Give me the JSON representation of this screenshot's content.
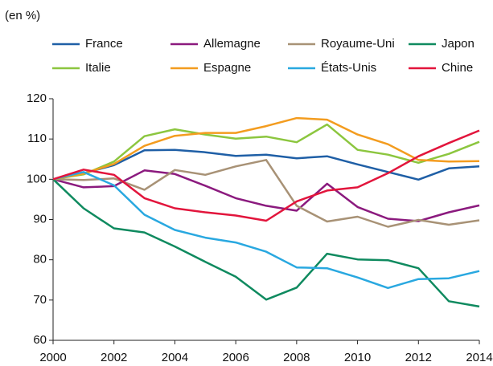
{
  "chart_data": {
    "type": "line",
    "unit_label": "(en %)",
    "x": [
      2000,
      2001,
      2002,
      2003,
      2004,
      2005,
      2006,
      2007,
      2008,
      2009,
      2010,
      2011,
      2012,
      2013,
      2014
    ],
    "xlim": [
      2000,
      2014
    ],
    "xticks": [
      2000,
      2002,
      2004,
      2006,
      2008,
      2010,
      2012,
      2014
    ],
    "ylim": [
      60,
      120
    ],
    "yticks": [
      60,
      70,
      80,
      90,
      100,
      110,
      120
    ],
    "grid": false,
    "series": [
      {
        "name": "France",
        "color": "#1f5fa6",
        "values": [
          100,
          101.5,
          103.5,
          107.2,
          107.3,
          106.7,
          105.8,
          106.1,
          105.2,
          105.7,
          103.7,
          101.8,
          99.9,
          102.7,
          103.2
        ]
      },
      {
        "name": "Allemagne",
        "color": "#8b1a7e",
        "values": [
          100,
          98,
          98.3,
          102.2,
          101.3,
          98.4,
          95.3,
          93.4,
          92.2,
          98.9,
          93.1,
          90.2,
          89.6,
          91.8,
          93.5
        ]
      },
      {
        "name": "Royaume-Uni",
        "color": "#a89276",
        "values": [
          100,
          99.8,
          100.2,
          97.4,
          102.3,
          101.1,
          103.2,
          104.8,
          93.4,
          89.5,
          90.7,
          88.2,
          89.9,
          88.7,
          89.8
        ]
      },
      {
        "name": "Japon",
        "color": "#0f8a5f",
        "values": [
          100,
          92.8,
          87.8,
          86.8,
          83.3,
          79.5,
          75.8,
          70.1,
          73.1,
          81.5,
          80.1,
          79.9,
          77.9,
          69.7,
          68.4
        ]
      },
      {
        "name": "Italie",
        "color": "#8cc63f",
        "values": [
          100,
          101.2,
          104.4,
          110.7,
          112.4,
          111.1,
          110.1,
          110.6,
          109.2,
          113.6,
          107.3,
          106.1,
          104.1,
          106.3,
          109.3
        ]
      },
      {
        "name": "Espagne",
        "color": "#f39c1f",
        "values": [
          100,
          101.4,
          103.8,
          108.3,
          110.8,
          111.5,
          111.5,
          113.2,
          115.2,
          114.8,
          111.1,
          108.7,
          104.8,
          104.4,
          104.5
        ]
      },
      {
        "name": "États-Unis",
        "color": "#29a8e0",
        "values": [
          100,
          101.8,
          98.5,
          91.2,
          87.4,
          85.5,
          84.3,
          82,
          78.1,
          77.9,
          75.6,
          73,
          75.2,
          75.4,
          77.2
        ]
      },
      {
        "name": "Chine",
        "color": "#e2153c",
        "values": [
          100,
          102.4,
          101.1,
          95.3,
          92.8,
          91.8,
          91,
          89.7,
          94.5,
          97.2,
          98,
          101.5,
          105.7,
          109,
          112.1
        ]
      }
    ]
  }
}
